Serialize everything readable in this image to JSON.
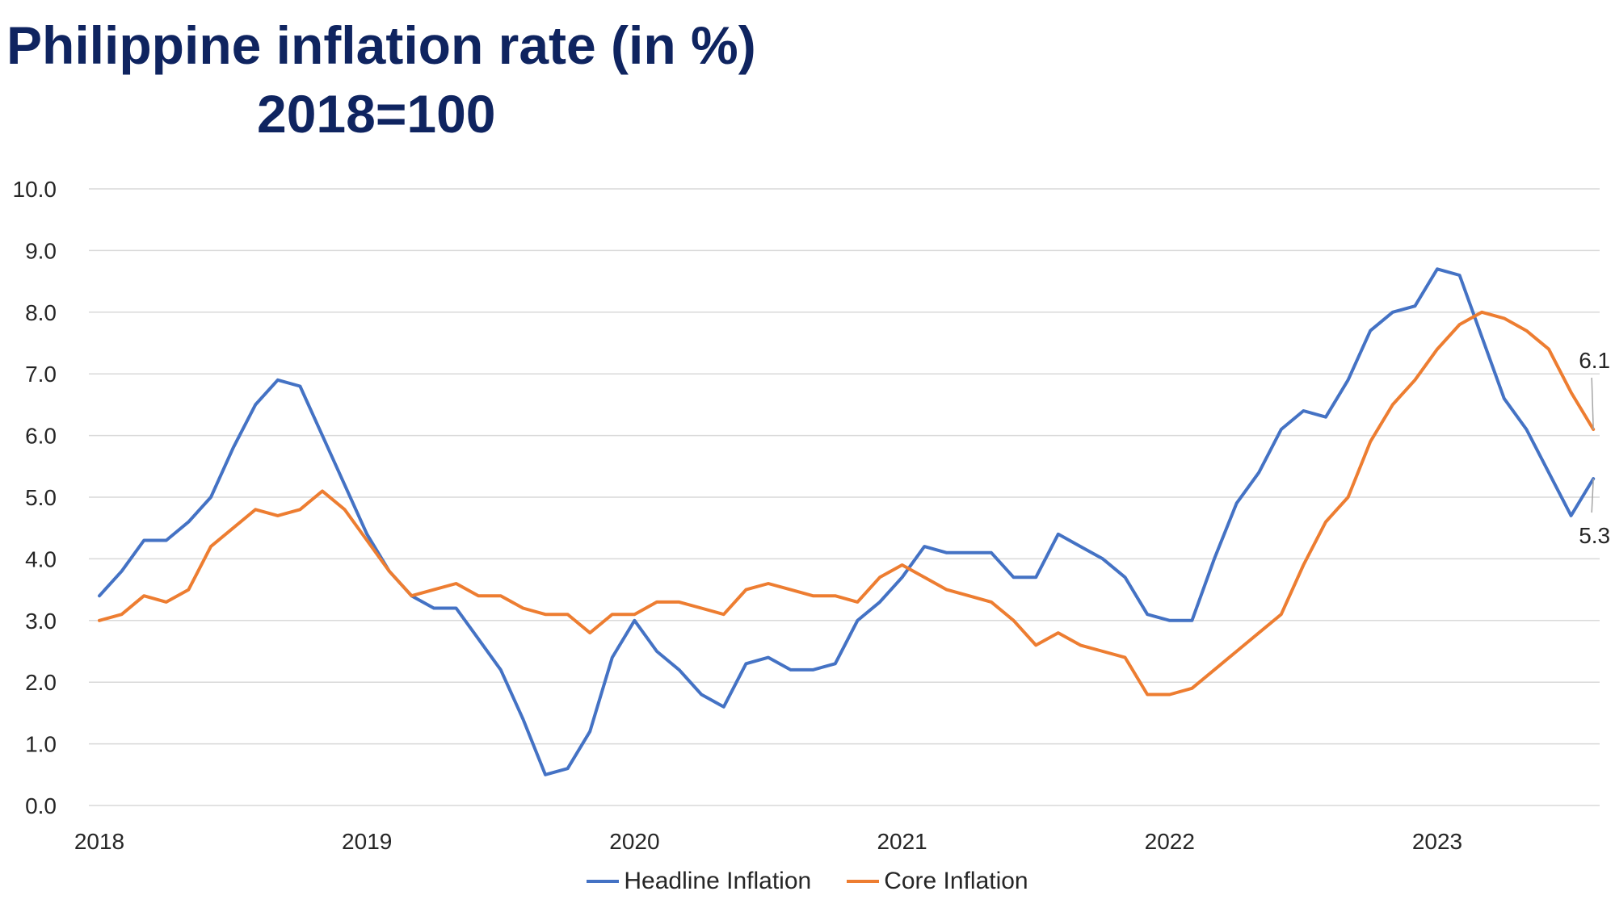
{
  "chart_data": {
    "type": "line",
    "title": "Philippine inflation rate (in %)",
    "subtitle": "2018=100",
    "xlabel": "",
    "ylabel": "",
    "ylim": [
      0,
      10
    ],
    "y_ticks": [
      "0.0",
      "1.0",
      "2.0",
      "3.0",
      "4.0",
      "5.0",
      "6.0",
      "7.0",
      "8.0",
      "9.0",
      "10.0"
    ],
    "x_ticks": [
      "2018",
      "2019",
      "2020",
      "2021",
      "2022",
      "2023"
    ],
    "x": [
      "2018-01",
      "2018-02",
      "2018-03",
      "2018-04",
      "2018-05",
      "2018-06",
      "2018-07",
      "2018-08",
      "2018-09",
      "2018-10",
      "2018-11",
      "2018-12",
      "2019-01",
      "2019-02",
      "2019-03",
      "2019-04",
      "2019-05",
      "2019-06",
      "2019-07",
      "2019-08",
      "2019-09",
      "2019-10",
      "2019-11",
      "2019-12",
      "2020-01",
      "2020-02",
      "2020-03",
      "2020-04",
      "2020-05",
      "2020-06",
      "2020-07",
      "2020-08",
      "2020-09",
      "2020-10",
      "2020-11",
      "2020-12",
      "2021-01",
      "2021-02",
      "2021-03",
      "2021-04",
      "2021-05",
      "2021-06",
      "2021-07",
      "2021-08",
      "2021-09",
      "2021-10",
      "2021-11",
      "2021-12",
      "2022-01",
      "2022-02",
      "2022-03",
      "2022-04",
      "2022-05",
      "2022-06",
      "2022-07",
      "2022-08",
      "2022-09",
      "2022-10",
      "2022-11",
      "2022-12",
      "2023-01",
      "2023-02",
      "2023-03",
      "2023-04",
      "2023-05",
      "2023-06",
      "2023-07",
      "2023-08"
    ],
    "grid": true,
    "legend_position": "bottom",
    "series": [
      {
        "name": "Headline Inflation",
        "color": "#4472c4",
        "values": [
          3.4,
          3.8,
          4.3,
          4.3,
          4.6,
          5.0,
          5.8,
          6.5,
          6.9,
          6.8,
          6.0,
          5.2,
          4.4,
          3.8,
          3.4,
          3.2,
          3.2,
          2.7,
          2.2,
          1.4,
          0.5,
          0.6,
          1.2,
          2.4,
          3.0,
          2.5,
          2.2,
          1.8,
          1.6,
          2.3,
          2.4,
          2.2,
          2.2,
          2.3,
          3.0,
          3.3,
          3.7,
          4.2,
          4.1,
          4.1,
          4.1,
          3.7,
          3.7,
          4.4,
          4.2,
          4.0,
          3.7,
          3.1,
          3.0,
          3.0,
          4.0,
          4.9,
          5.4,
          6.1,
          6.4,
          6.3,
          6.9,
          7.7,
          8.0,
          8.1,
          8.7,
          8.6,
          7.6,
          6.6,
          6.1,
          5.4,
          4.7,
          5.3
        ],
        "end_label": "5.3"
      },
      {
        "name": "Core Inflation",
        "color": "#ed7d31",
        "values": [
          3.0,
          3.1,
          3.4,
          3.3,
          3.5,
          4.2,
          4.5,
          4.8,
          4.7,
          4.8,
          5.1,
          4.8,
          4.3,
          3.8,
          3.4,
          3.5,
          3.6,
          3.4,
          3.4,
          3.2,
          3.1,
          3.1,
          2.8,
          3.1,
          3.1,
          3.3,
          3.3,
          3.2,
          3.1,
          3.5,
          3.6,
          3.5,
          3.4,
          3.4,
          3.3,
          3.7,
          3.9,
          3.7,
          3.5,
          3.4,
          3.3,
          3.0,
          2.6,
          2.8,
          2.6,
          2.5,
          2.4,
          1.8,
          1.8,
          1.9,
          2.2,
          2.5,
          2.8,
          3.1,
          3.9,
          4.6,
          5.0,
          5.9,
          6.5,
          6.9,
          7.4,
          7.8,
          8.0,
          7.9,
          7.7,
          7.4,
          6.7,
          6.1
        ],
        "end_label": "6.1"
      }
    ]
  }
}
